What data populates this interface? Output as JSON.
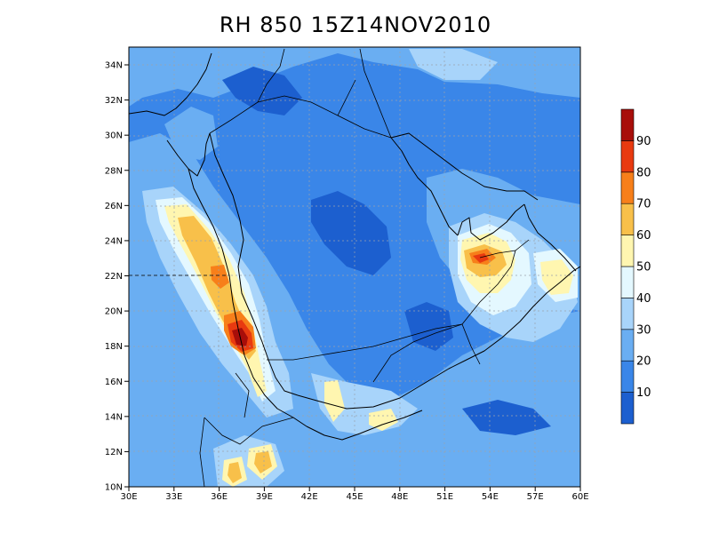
{
  "title": "RH 850 15Z14NOV2010",
  "lat_ticks": [
    "34N",
    "32N",
    "30N",
    "28N",
    "26N",
    "24N",
    "22N",
    "20N",
    "18N",
    "16N",
    "14N",
    "12N",
    "10N"
  ],
  "lon_ticks": [
    "30E",
    "33E",
    "36E",
    "39E",
    "42E",
    "45E",
    "48E",
    "51E",
    "54E",
    "57E",
    "60E"
  ],
  "colorbar": {
    "labels": [
      "10",
      "20",
      "30",
      "40",
      "50",
      "60",
      "70",
      "80",
      "90"
    ],
    "colors": [
      "#1c5fcf",
      "#3a86e8",
      "#6aaef2",
      "#a8d4fa",
      "#e4f8ff",
      "#fff6b0",
      "#f8c04a",
      "#f77f1a",
      "#e83a10",
      "#a80e0a"
    ]
  },
  "colors": {
    "ocean_base": "#6aaef2",
    "land_base": "#3a86e8",
    "dry_core": "#1c5fcf",
    "moist_low": "#a8d4fa",
    "moist_mid": "#e4f8ff",
    "moist_high": "#fff6b0",
    "moist_max": "#f8c04a",
    "peak_1": "#f77f1a",
    "peak_2": "#e83a10",
    "peak_3": "#a80e0a"
  }
}
